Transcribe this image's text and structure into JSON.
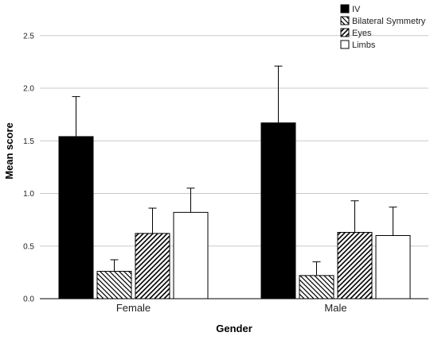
{
  "chart_data": {
    "type": "bar",
    "categories": [
      "Female",
      "Male"
    ],
    "series": [
      {
        "name": "IV",
        "values": [
          1.54,
          1.67
        ],
        "error_upper": [
          1.92,
          2.21
        ],
        "fill": "solid",
        "color": "#000000"
      },
      {
        "name": "Bilateral Symmetry",
        "values": [
          0.26,
          0.22
        ],
        "error_upper": [
          0.37,
          0.35
        ],
        "fill": "hatch-back",
        "color": "#000000"
      },
      {
        "name": "Eyes",
        "values": [
          0.62,
          0.63
        ],
        "error_upper": [
          0.86,
          0.93
        ],
        "fill": "hatch-forward",
        "color": "#000000"
      },
      {
        "name": "Limbs",
        "values": [
          0.82,
          0.6
        ],
        "error_upper": [
          1.05,
          0.87
        ],
        "fill": "empty",
        "color": "#ffffff"
      }
    ],
    "xlabel": "Gender",
    "ylabel": "Mean score",
    "ylim": [
      0,
      2.8
    ],
    "yticks": [
      "0.0",
      "0.5",
      "1.0",
      "1.5",
      "2.0",
      "2.5"
    ],
    "grid": true,
    "legend_position": "top-right"
  }
}
